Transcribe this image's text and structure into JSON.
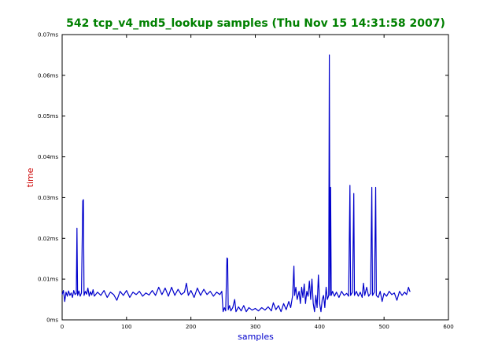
{
  "chart_data": {
    "type": "line",
    "title": "542 tcp_v4_md5_lookup samples (Thu Nov 15 14:31:58 2007)",
    "xlabel": "samples",
    "ylabel": "time",
    "xlim": [
      0,
      600
    ],
    "ylim": [
      0,
      0.07
    ],
    "x_ticks": [
      "0",
      "100",
      "200",
      "300",
      "400",
      "500",
      "600"
    ],
    "y_ticks": [
      "0ms",
      "0.01ms",
      "0.02ms",
      "0.03ms",
      "0.04ms",
      "0.05ms",
      "0.06ms",
      "0.07ms"
    ],
    "grid": false,
    "colors": {
      "title": "#008000",
      "xlabel": "#0000cc",
      "ylabel": "#cc0000",
      "series": "#0000cc"
    },
    "series": [
      {
        "points": [
          [
            0,
            0.0062
          ],
          [
            2,
            0.0072
          ],
          [
            4,
            0.0045
          ],
          [
            6,
            0.0068
          ],
          [
            8,
            0.0058
          ],
          [
            10,
            0.0071
          ],
          [
            12,
            0.006
          ],
          [
            14,
            0.0066
          ],
          [
            16,
            0.0055
          ],
          [
            18,
            0.0072
          ],
          [
            20,
            0.0062
          ],
          [
            22,
            0.0065
          ],
          [
            23,
            0.0225
          ],
          [
            24,
            0.006
          ],
          [
            26,
            0.0071
          ],
          [
            28,
            0.0058
          ],
          [
            30,
            0.0066
          ],
          [
            32,
            0.0292
          ],
          [
            33,
            0.0295
          ],
          [
            34,
            0.006
          ],
          [
            36,
            0.007
          ],
          [
            38,
            0.0063
          ],
          [
            40,
            0.0078
          ],
          [
            42,
            0.0058
          ],
          [
            44,
            0.0069
          ],
          [
            46,
            0.0061
          ],
          [
            48,
            0.0074
          ],
          [
            50,
            0.0058
          ],
          [
            55,
            0.0068
          ],
          [
            60,
            0.006
          ],
          [
            65,
            0.0072
          ],
          [
            70,
            0.0055
          ],
          [
            75,
            0.0068
          ],
          [
            80,
            0.0062
          ],
          [
            85,
            0.0048
          ],
          [
            90,
            0.007
          ],
          [
            95,
            0.006
          ],
          [
            100,
            0.0072
          ],
          [
            105,
            0.0055
          ],
          [
            110,
            0.0068
          ],
          [
            115,
            0.0062
          ],
          [
            120,
            0.007
          ],
          [
            125,
            0.0058
          ],
          [
            130,
            0.0066
          ],
          [
            135,
            0.0061
          ],
          [
            140,
            0.0072
          ],
          [
            145,
            0.006
          ],
          [
            150,
            0.008
          ],
          [
            155,
            0.0062
          ],
          [
            160,
            0.0078
          ],
          [
            165,
            0.0058
          ],
          [
            170,
            0.008
          ],
          [
            175,
            0.006
          ],
          [
            180,
            0.0075
          ],
          [
            185,
            0.0062
          ],
          [
            190,
            0.0068
          ],
          [
            193,
            0.009
          ],
          [
            196,
            0.006
          ],
          [
            200,
            0.0072
          ],
          [
            205,
            0.0055
          ],
          [
            210,
            0.0078
          ],
          [
            215,
            0.006
          ],
          [
            220,
            0.0075
          ],
          [
            225,
            0.0062
          ],
          [
            230,
            0.007
          ],
          [
            235,
            0.0058
          ],
          [
            240,
            0.0068
          ],
          [
            245,
            0.0062
          ],
          [
            248,
            0.007
          ],
          [
            250,
            0.002
          ],
          [
            252,
            0.003
          ],
          [
            254,
            0.0022
          ],
          [
            256,
            0.0152
          ],
          [
            257,
            0.015
          ],
          [
            258,
            0.0025
          ],
          [
            260,
            0.0035
          ],
          [
            262,
            0.0022
          ],
          [
            265,
            0.003
          ],
          [
            268,
            0.005
          ],
          [
            270,
            0.002
          ],
          [
            274,
            0.0032
          ],
          [
            278,
            0.0022
          ],
          [
            282,
            0.0035
          ],
          [
            286,
            0.002
          ],
          [
            290,
            0.003
          ],
          [
            295,
            0.0024
          ],
          [
            300,
            0.0028
          ],
          [
            305,
            0.0022
          ],
          [
            310,
            0.003
          ],
          [
            315,
            0.0024
          ],
          [
            320,
            0.0032
          ],
          [
            325,
            0.0022
          ],
          [
            328,
            0.0042
          ],
          [
            332,
            0.0025
          ],
          [
            336,
            0.0035
          ],
          [
            340,
            0.002
          ],
          [
            344,
            0.004
          ],
          [
            348,
            0.0025
          ],
          [
            352,
            0.0045
          ],
          [
            355,
            0.003
          ],
          [
            358,
            0.006
          ],
          [
            360,
            0.0132
          ],
          [
            361,
            0.006
          ],
          [
            363,
            0.008
          ],
          [
            365,
            0.005
          ],
          [
            368,
            0.007
          ],
          [
            370,
            0.004
          ],
          [
            372,
            0.008
          ],
          [
            374,
            0.0055
          ],
          [
            376,
            0.0088
          ],
          [
            378,
            0.004
          ],
          [
            380,
            0.007
          ],
          [
            382,
            0.0058
          ],
          [
            384,
            0.0095
          ],
          [
            386,
            0.005
          ],
          [
            388,
            0.01
          ],
          [
            390,
            0.004
          ],
          [
            392,
            0.002
          ],
          [
            394,
            0.006
          ],
          [
            396,
            0.003
          ],
          [
            398,
            0.011
          ],
          [
            400,
            0.004
          ],
          [
            402,
            0.002
          ],
          [
            404,
            0.005
          ],
          [
            406,
            0.006
          ],
          [
            408,
            0.003
          ],
          [
            410,
            0.008
          ],
          [
            412,
            0.005
          ],
          [
            414,
            0.006
          ],
          [
            415,
            0.065
          ],
          [
            416,
            0.006
          ],
          [
            417,
            0.0325
          ],
          [
            418,
            0.006
          ],
          [
            420,
            0.007
          ],
          [
            423,
            0.0058
          ],
          [
            426,
            0.0068
          ],
          [
            430,
            0.0055
          ],
          [
            434,
            0.007
          ],
          [
            438,
            0.006
          ],
          [
            442,
            0.0065
          ],
          [
            445,
            0.0058
          ],
          [
            447,
            0.033
          ],
          [
            448,
            0.006
          ],
          [
            451,
            0.0068
          ],
          [
            453,
            0.031
          ],
          [
            454,
            0.006
          ],
          [
            457,
            0.007
          ],
          [
            460,
            0.0058
          ],
          [
            463,
            0.0068
          ],
          [
            466,
            0.0055
          ],
          [
            468,
            0.009
          ],
          [
            470,
            0.006
          ],
          [
            473,
            0.008
          ],
          [
            476,
            0.0058
          ],
          [
            479,
            0.0065
          ],
          [
            481,
            0.0325
          ],
          [
            482,
            0.006
          ],
          [
            485,
            0.0068
          ],
          [
            487,
            0.0325
          ],
          [
            488,
            0.006
          ],
          [
            491,
            0.0055
          ],
          [
            494,
            0.007
          ],
          [
            497,
            0.0045
          ],
          [
            500,
            0.0065
          ],
          [
            504,
            0.0058
          ],
          [
            508,
            0.007
          ],
          [
            512,
            0.0062
          ],
          [
            516,
            0.0066
          ],
          [
            520,
            0.0048
          ],
          [
            524,
            0.007
          ],
          [
            528,
            0.006
          ],
          [
            532,
            0.0068
          ],
          [
            535,
            0.0062
          ],
          [
            538,
            0.008
          ],
          [
            540,
            0.007
          ],
          [
            541,
            0.007
          ]
        ]
      }
    ]
  }
}
